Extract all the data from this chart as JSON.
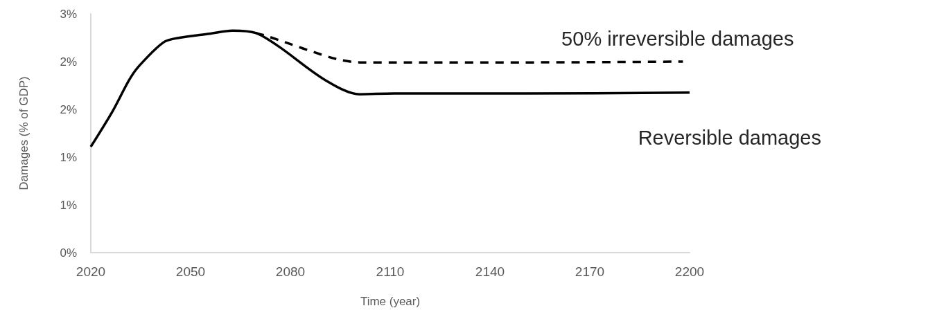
{
  "chart_data": {
    "type": "line",
    "xlabel": "Time (year)",
    "ylabel": "Damages (% of GDP)",
    "xlim": [
      2020,
      2200
    ],
    "xticks": [
      2020,
      2050,
      2080,
      2110,
      2140,
      2170,
      2200
    ],
    "ylim": [
      0,
      3.0
    ],
    "yticks": [
      {
        "value": 0,
        "label": "0%"
      },
      {
        "value": 0.6,
        "label": "1%"
      },
      {
        "value": 1.2,
        "label": "1%"
      },
      {
        "value": 1.8,
        "label": "2%"
      },
      {
        "value": 2.4,
        "label": "2%"
      },
      {
        "value": 3.0,
        "label": "3%"
      }
    ],
    "grid": false,
    "legend": false,
    "marker": "none",
    "series": [
      {
        "name": "50% irreversible damages",
        "color": "#000000",
        "line_style": "dashed",
        "x": [
          2069.6,
          2073,
          2080,
          2087,
          2094,
          2101,
          2111,
          2150,
          2198
        ],
        "values": [
          2.76,
          2.72,
          2.62,
          2.52,
          2.43,
          2.39,
          2.39,
          2.39,
          2.4
        ]
      },
      {
        "name": "Reversible damages",
        "color": "#000000",
        "line_style": "solid",
        "x": [
          2020,
          2026.6,
          2031.4,
          2034.2,
          2041.8,
          2046.7,
          2055.7,
          2062.6,
          2069.6,
          2076.5,
          2090.4,
          2100.8,
          2111.3,
          2150,
          2200
        ],
        "values": [
          1.33,
          1.78,
          2.16,
          2.33,
          2.64,
          2.7,
          2.75,
          2.79,
          2.76,
          2.59,
          2.17,
          1.99,
          2.0,
          2.0,
          2.01
        ]
      }
    ]
  }
}
